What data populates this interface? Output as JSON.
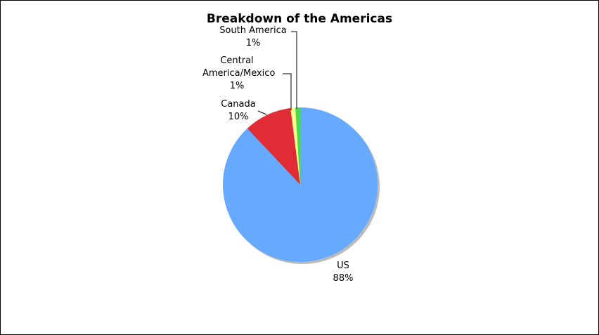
{
  "chart_data": {
    "type": "pie",
    "title": "Breakdown of the Americas",
    "categories": [
      "US",
      "Canada",
      "Central America/Mexico",
      "South America"
    ],
    "values": [
      88,
      10,
      1,
      1
    ],
    "value_labels": [
      "88%",
      "10%",
      "1%",
      "1%"
    ],
    "colors": [
      "#66aaff",
      "#e02c34",
      "#ffff88",
      "#44dd55"
    ]
  }
}
